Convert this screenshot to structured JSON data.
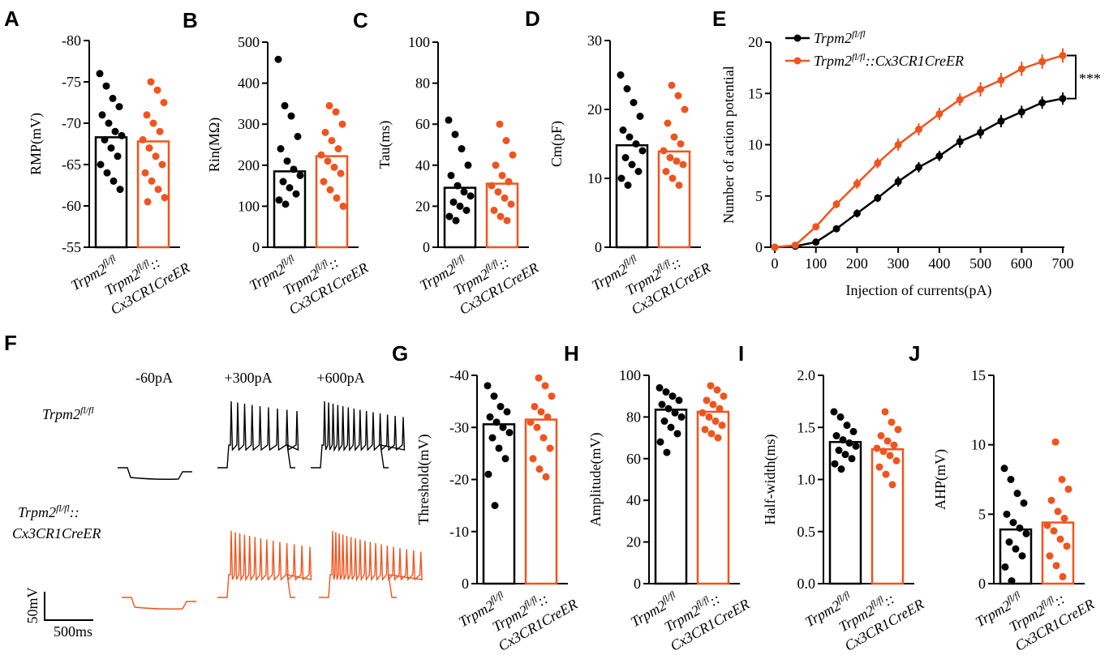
{
  "groups": [
    {
      "base": "Trpm2",
      "sup": "fl/fl"
    },
    {
      "base": "Trpm2",
      "sup": "fl/fl",
      "suffix": "::",
      "line2": "Cx3CR1CreER"
    }
  ],
  "traces": {
    "label": "F",
    "steps": [
      "-60pA",
      "+300pA",
      "+600pA"
    ],
    "scale_y": "50mV",
    "scale_x": "500ms"
  },
  "chart_data": [
    {
      "type": "bar",
      "label": "A",
      "ylabel": "RMP(mV)",
      "ylim": [
        -55,
        -80
      ],
      "yticks": [
        -55,
        -60,
        -65,
        -70,
        -75,
        -80
      ],
      "values": [
        -68.3,
        -67.8
      ],
      "colors": [
        "#000000",
        "#f0541e"
      ],
      "points": [
        [
          -76,
          -74.5,
          -73,
          -72,
          -71,
          -70,
          -69,
          -68.5,
          -68,
          -67,
          -66,
          -65,
          -64,
          -63,
          -62
        ],
        [
          -75,
          -74,
          -72.5,
          -71,
          -70,
          -69,
          -68,
          -67,
          -66,
          -65,
          -64,
          -63,
          -62,
          -61,
          -60.5
        ]
      ]
    },
    {
      "type": "bar",
      "label": "B",
      "ylabel": "Rin(MΩ)",
      "ylim": [
        0,
        500
      ],
      "yticks": [
        0,
        100,
        200,
        300,
        400,
        500
      ],
      "values": [
        185,
        222
      ],
      "colors": [
        "#000000",
        "#f0541e"
      ],
      "points": [
        [
          458,
          345,
          320,
          270,
          240,
          210,
          190,
          175,
          160,
          145,
          130,
          115,
          105
        ],
        [
          345,
          330,
          300,
          280,
          260,
          240,
          225,
          210,
          195,
          180,
          160,
          140,
          120,
          100
        ]
      ]
    },
    {
      "type": "bar",
      "label": "C",
      "ylabel": "Tau(ms)",
      "ylim": [
        0,
        100
      ],
      "yticks": [
        0,
        20,
        40,
        60,
        80,
        100
      ],
      "values": [
        29,
        31
      ],
      "colors": [
        "#000000",
        "#f0541e"
      ],
      "points": [
        [
          62,
          55,
          48,
          40,
          35,
          30,
          27,
          25,
          22,
          20,
          18,
          15,
          13
        ],
        [
          60,
          52,
          45,
          40,
          35,
          32,
          30,
          27,
          24,
          21,
          18,
          15,
          13
        ]
      ]
    },
    {
      "type": "bar",
      "label": "D",
      "ylabel": "Cm(pF)",
      "ylim": [
        0,
        30
      ],
      "yticks": [
        0,
        10,
        20,
        30
      ],
      "values": [
        14.8,
        13.9
      ],
      "colors": [
        "#000000",
        "#f0541e"
      ],
      "points": [
        [
          25,
          23,
          21,
          19,
          17,
          16,
          15,
          14,
          13,
          12,
          11,
          10,
          9
        ],
        [
          23.5,
          22,
          20,
          18,
          16,
          15,
          14,
          13,
          12.5,
          12,
          11,
          10,
          9
        ]
      ]
    },
    {
      "type": "line",
      "label": "E",
      "xlabel": "Injection of currents(pA)",
      "ylabel": "Number of action potential",
      "annotation": "***",
      "xlim": [
        0,
        700
      ],
      "xticks": [
        0,
        100,
        200,
        300,
        400,
        500,
        600,
        700
      ],
      "ylim": [
        0,
        20
      ],
      "yticks": [
        0,
        5,
        10,
        15,
        20
      ],
      "x": [
        0,
        50,
        100,
        150,
        200,
        250,
        300,
        350,
        400,
        450,
        500,
        550,
        600,
        650,
        700
      ],
      "series": [
        {
          "name": {
            "base": "Trpm2",
            "sup": "fl/fl"
          },
          "color": "#000000",
          "values": [
            0,
            0.1,
            0.5,
            1.8,
            3.3,
            4.8,
            6.4,
            7.8,
            8.9,
            10.3,
            11.2,
            12.3,
            13.2,
            14.1,
            14.5
          ],
          "errors": [
            0,
            0.1,
            0.2,
            0.3,
            0.4,
            0.4,
            0.5,
            0.5,
            0.5,
            0.6,
            0.6,
            0.6,
            0.6,
            0.6,
            0.6
          ]
        },
        {
          "name": {
            "base": "Trpm2",
            "sup": "fl/fl",
            "suffix": "::Cx3CR1CreER"
          },
          "color": "#f0541e",
          "values": [
            0,
            0.2,
            2.0,
            4.2,
            6.2,
            8.2,
            10,
            11.5,
            13,
            14.4,
            15.4,
            16.3,
            17.4,
            18.1,
            18.7
          ],
          "errors": [
            0,
            0.1,
            0.3,
            0.4,
            0.5,
            0.5,
            0.6,
            0.6,
            0.6,
            0.6,
            0.7,
            0.7,
            0.7,
            0.7,
            0.7
          ]
        }
      ]
    },
    {
      "type": "bar",
      "label": "G",
      "ylabel": "Threshold(mV)",
      "ylim": [
        0,
        -40
      ],
      "yticks": [
        0,
        -10,
        -20,
        -30,
        -40
      ],
      "values": [
        -30.6,
        -31.5
      ],
      "colors": [
        "#000000",
        "#f0541e"
      ],
      "points": [
        [
          -38,
          -36,
          -34,
          -33,
          -32,
          -31,
          -30,
          -29,
          -28,
          -26,
          -24,
          -21,
          -15
        ],
        [
          -39.5,
          -38,
          -36,
          -34,
          -33,
          -32,
          -31,
          -30,
          -28,
          -26,
          -24,
          -22,
          -20.5
        ]
      ]
    },
    {
      "type": "bar",
      "label": "H",
      "ylabel": "Amplitude(mV)",
      "ylim": [
        0,
        100
      ],
      "yticks": [
        0,
        20,
        40,
        60,
        80,
        100
      ],
      "values": [
        83.5,
        82.5
      ],
      "colors": [
        "#000000",
        "#f0541e"
      ],
      "points": [
        [
          94,
          92,
          90,
          88,
          86,
          84,
          82,
          80,
          78,
          75,
          72,
          68,
          63
        ],
        [
          95,
          93,
          90,
          88,
          86,
          84,
          82,
          80,
          78,
          76,
          74,
          72,
          70
        ]
      ]
    },
    {
      "type": "bar",
      "label": "I",
      "ylabel": "Half-width(ms)",
      "ylim": [
        0,
        2
      ],
      "yticks": [
        {
          "value": 0,
          "label": "0.0"
        },
        {
          "value": 0.5,
          "label": "0.5"
        },
        {
          "value": 1,
          "label": "1.0"
        },
        {
          "value": 1.5,
          "label": "1.5"
        },
        {
          "value": 2,
          "label": "2.0"
        }
      ],
      "values": [
        1.36,
        1.29
      ],
      "colors": [
        "#000000",
        "#f0541e"
      ],
      "points": [
        [
          1.65,
          1.6,
          1.52,
          1.46,
          1.42,
          1.38,
          1.35,
          1.32,
          1.28,
          1.24,
          1.2,
          1.15,
          1.1
        ],
        [
          1.65,
          1.55,
          1.48,
          1.42,
          1.37,
          1.33,
          1.3,
          1.27,
          1.23,
          1.18,
          1.12,
          1.05,
          0.95
        ]
      ]
    },
    {
      "type": "bar",
      "label": "J",
      "ylabel": "AHP(mV)",
      "ylim": [
        0,
        15
      ],
      "yticks": [
        0,
        5,
        10,
        15
      ],
      "values": [
        3.9,
        4.4
      ],
      "colors": [
        "#000000",
        "#f0541e"
      ],
      "points": [
        [
          8.3,
          7.5,
          6.5,
          5.8,
          5,
          4.4,
          4,
          3.6,
          3,
          2.5,
          2,
          1.2,
          0.2
        ],
        [
          10.2,
          7.5,
          6.8,
          6,
          5.2,
          4.7,
          4.2,
          3.8,
          3.2,
          2.7,
          2,
          1.3,
          0.5
        ]
      ]
    }
  ]
}
